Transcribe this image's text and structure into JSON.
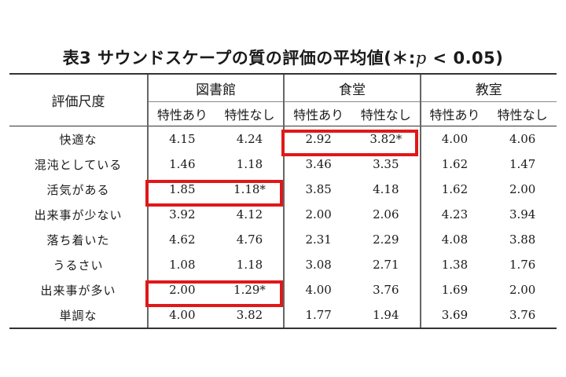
{
  "title_prefix": "表3 サウンドスケープの質の評価の平均値(＊:",
  "title_p": "p",
  "title_suffix": " < 0.05)",
  "header": {
    "scale": "評価尺度",
    "groups": [
      "図書館",
      "食堂",
      "教室"
    ],
    "with_trait": "特性あり",
    "without_trait": "特性なし"
  },
  "rows": [
    {
      "label": "快適な",
      "values": [
        "4.15",
        "4.24",
        "2.92",
        "3.82*",
        "4.00",
        "4.06"
      ]
    },
    {
      "label": "混沌としている",
      "values": [
        "1.46",
        "1.18",
        "3.46",
        "3.35",
        "1.62",
        "1.47"
      ]
    },
    {
      "label": "活気がある",
      "values": [
        "1.85",
        "1.18*",
        "3.85",
        "4.18",
        "1.62",
        "2.00"
      ]
    },
    {
      "label": "出来事が少ない",
      "values": [
        "3.92",
        "4.12",
        "2.00",
        "2.06",
        "4.23",
        "3.94"
      ]
    },
    {
      "label": "落ち着いた",
      "values": [
        "4.62",
        "4.76",
        "2.31",
        "2.29",
        "4.08",
        "3.88"
      ]
    },
    {
      "label": "うるさい",
      "values": [
        "1.08",
        "1.18",
        "3.08",
        "2.71",
        "1.38",
        "1.76"
      ]
    },
    {
      "label": "出来事が多い",
      "values": [
        "2.00",
        "1.29*",
        "4.00",
        "3.76",
        "1.69",
        "2.00"
      ]
    },
    {
      "label": "単調な",
      "values": [
        "4.00",
        "3.82",
        "1.77",
        "1.94",
        "3.69",
        "3.76"
      ]
    }
  ],
  "highlight_color": "#e01818"
}
